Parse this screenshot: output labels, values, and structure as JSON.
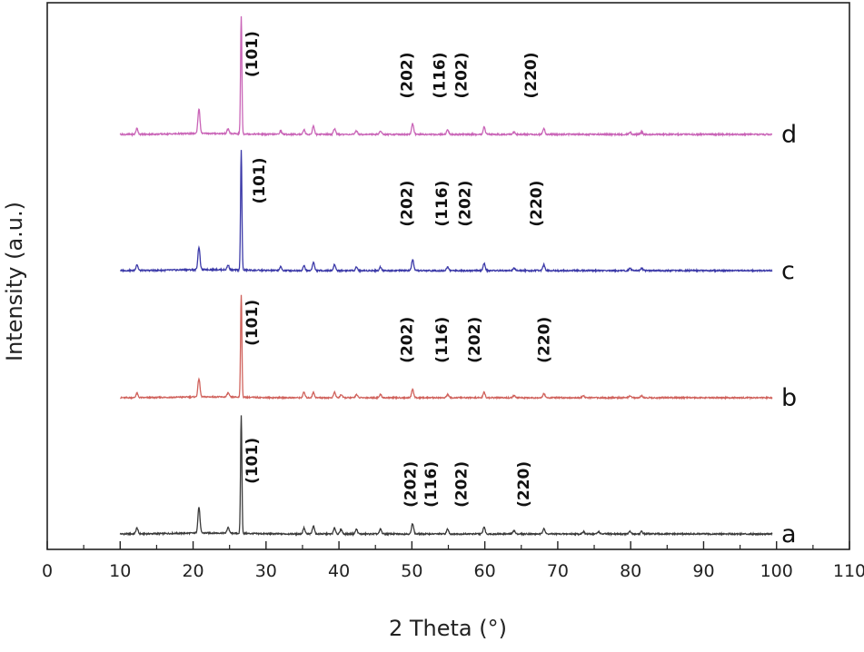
{
  "chart_data": {
    "type": "line",
    "title": "",
    "xlabel": "2 Theta (°)",
    "ylabel": "Intensity (a.u.)",
    "xlim": [
      0,
      110
    ],
    "xticks": [
      0,
      10,
      20,
      30,
      40,
      50,
      60,
      70,
      80,
      90,
      100,
      110
    ],
    "grid": false,
    "series": [
      {
        "id": "a",
        "tag": "a",
        "color": "#3a3a3a",
        "peaks": [
          [
            12.3,
            0.05
          ],
          [
            20.8,
            0.22
          ],
          [
            24.8,
            0.05
          ],
          [
            26.6,
            1.0
          ],
          [
            35.2,
            0.05
          ],
          [
            36.5,
            0.07
          ],
          [
            39.4,
            0.05
          ],
          [
            40.3,
            0.04
          ],
          [
            42.4,
            0.04
          ],
          [
            45.7,
            0.04
          ],
          [
            50.1,
            0.09
          ],
          [
            54.9,
            0.04
          ],
          [
            59.9,
            0.06
          ],
          [
            64.0,
            0.03
          ],
          [
            68.1,
            0.05
          ],
          [
            73.5,
            0.02
          ],
          [
            75.6,
            0.02
          ],
          [
            79.9,
            0.02
          ],
          [
            81.5,
            0.02
          ]
        ],
        "labels": [
          {
            "text": "(101)",
            "x": 28.8,
            "offset": 0.62
          },
          {
            "text": "(202)",
            "x": 50.5,
            "offset": 0.42
          },
          {
            "text": "(116)",
            "x": 53.3,
            "offset": 0.42
          },
          {
            "text": "(202)",
            "x": 57.5,
            "offset": 0.42
          },
          {
            "text": "(220)",
            "x": 66.0,
            "offset": 0.42
          }
        ]
      },
      {
        "id": "b",
        "tag": "b",
        "color": "#d0625c",
        "peaks": [
          [
            12.3,
            0.04
          ],
          [
            20.8,
            0.17
          ],
          [
            24.8,
            0.04
          ],
          [
            26.6,
            0.96
          ],
          [
            35.2,
            0.05
          ],
          [
            36.5,
            0.05
          ],
          [
            39.4,
            0.05
          ],
          [
            40.3,
            0.03
          ],
          [
            42.4,
            0.03
          ],
          [
            45.7,
            0.03
          ],
          [
            50.1,
            0.08
          ],
          [
            54.9,
            0.03
          ],
          [
            59.9,
            0.05
          ],
          [
            64.0,
            0.02
          ],
          [
            68.1,
            0.04
          ],
          [
            73.5,
            0.02
          ],
          [
            79.9,
            0.02
          ],
          [
            81.5,
            0.02
          ]
        ],
        "labels": [
          {
            "text": "(101)",
            "x": 28.8,
            "offset": 0.7
          },
          {
            "text": "(202)",
            "x": 50.0,
            "offset": 0.54
          },
          {
            "text": "(116)",
            "x": 54.8,
            "offset": 0.54
          },
          {
            "text": "(202)",
            "x": 59.3,
            "offset": 0.54
          },
          {
            "text": "(220)",
            "x": 68.8,
            "offset": 0.54
          }
        ]
      },
      {
        "id": "c",
        "tag": "c",
        "color": "#3b39a8",
        "peaks": [
          [
            12.3,
            0.05
          ],
          [
            20.8,
            0.19
          ],
          [
            24.8,
            0.04
          ],
          [
            26.6,
            1.0
          ],
          [
            32.0,
            0.03
          ],
          [
            35.2,
            0.04
          ],
          [
            36.5,
            0.07
          ],
          [
            39.4,
            0.05
          ],
          [
            42.4,
            0.03
          ],
          [
            45.7,
            0.03
          ],
          [
            50.1,
            0.09
          ],
          [
            54.9,
            0.03
          ],
          [
            59.9,
            0.06
          ],
          [
            64.0,
            0.02
          ],
          [
            68.1,
            0.05
          ],
          [
            79.9,
            0.02
          ],
          [
            81.5,
            0.02
          ]
        ],
        "labels": [
          {
            "text": "(101)",
            "x": 29.8,
            "offset": 0.75
          },
          {
            "text": "(202)",
            "x": 50.0,
            "offset": 0.56
          },
          {
            "text": "(116)",
            "x": 54.8,
            "offset": 0.56
          },
          {
            "text": "(202)",
            "x": 58.0,
            "offset": 0.56
          },
          {
            "text": "(220)",
            "x": 67.8,
            "offset": 0.56
          }
        ]
      },
      {
        "id": "d",
        "tag": "d",
        "color": "#c964b7",
        "peaks": [
          [
            12.3,
            0.05
          ],
          [
            20.8,
            0.21
          ],
          [
            24.8,
            0.04
          ],
          [
            26.6,
            1.0
          ],
          [
            32.0,
            0.03
          ],
          [
            35.2,
            0.04
          ],
          [
            36.5,
            0.07
          ],
          [
            39.4,
            0.05
          ],
          [
            42.4,
            0.03
          ],
          [
            45.7,
            0.03
          ],
          [
            50.1,
            0.09
          ],
          [
            54.9,
            0.04
          ],
          [
            59.9,
            0.06
          ],
          [
            64.0,
            0.02
          ],
          [
            68.1,
            0.05
          ],
          [
            79.9,
            0.02
          ],
          [
            81.5,
            0.02
          ]
        ],
        "labels": [
          {
            "text": "(101)",
            "x": 28.8,
            "offset": 0.68
          },
          {
            "text": "(202)",
            "x": 50.0,
            "offset": 0.5
          },
          {
            "text": "(116)",
            "x": 54.5,
            "offset": 0.5
          },
          {
            "text": "(202)",
            "x": 57.5,
            "offset": 0.5
          },
          {
            "text": "(220)",
            "x": 67.0,
            "offset": 0.5
          }
        ]
      }
    ]
  }
}
